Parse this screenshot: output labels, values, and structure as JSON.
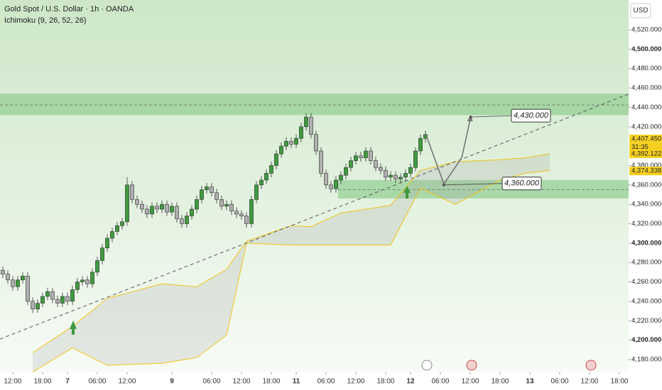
{
  "chart_data": {
    "type": "candlestick",
    "title": "Gold Spot / U.S. Dollar · 1h · OANDA",
    "indicator": "Ichimoku (9, 26, 52, 26)",
    "currency": "USD",
    "up_color": "#3f9a3f",
    "down_color": "#b0b0b0",
    "x": [
      -2,
      -1,
      0,
      1,
      2,
      3,
      4,
      5,
      6,
      7,
      8,
      9,
      10,
      11,
      12,
      13,
      14,
      15,
      16,
      17,
      18,
      19,
      20,
      21,
      22,
      23,
      24,
      25,
      26,
      27,
      28,
      29,
      30,
      31,
      32,
      33,
      34,
      35,
      36,
      37,
      38,
      39,
      40,
      41,
      42,
      43,
      44,
      45,
      46,
      47,
      48,
      49,
      50,
      51,
      52,
      53,
      54,
      55,
      56,
      57,
      58,
      59,
      60,
      61,
      62,
      63,
      64,
      65,
      66,
      67,
      68,
      69,
      70,
      71,
      72,
      73,
      74,
      75,
      76,
      77,
      78,
      79,
      80,
      81,
      82,
      83
    ],
    "open": [
      4272,
      4268,
      4262,
      4255,
      4262,
      4266,
      4240,
      4232,
      4238,
      4245,
      4250,
      4242,
      4238,
      4245,
      4240,
      4252,
      4260,
      4262,
      4258,
      4270,
      4282,
      4295,
      4305,
      4312,
      4318,
      4322,
      4360,
      4345,
      4340,
      4335,
      4330,
      4338,
      4335,
      4340,
      4332,
      4338,
      4325,
      4320,
      4328,
      4335,
      4345,
      4355,
      4358,
      4352,
      4345,
      4338,
      4340,
      4333,
      4330,
      4328,
      4320,
      4345,
      4360,
      4365,
      4372,
      4380,
      4392,
      4400,
      4405,
      4402,
      4408,
      4420,
      4430,
      4412,
      4395,
      4372,
      4360,
      4356,
      4365,
      4370,
      4378,
      4385,
      4390,
      4388,
      4395,
      4385,
      4378,
      4375,
      4368,
      4370,
      4366,
      4368,
      4372,
      4378,
      4395,
      4408
    ],
    "high": [
      4276,
      4272,
      4266,
      4266,
      4270,
      4270,
      4244,
      4242,
      4249,
      4254,
      4254,
      4246,
      4249,
      4249,
      4256,
      4264,
      4266,
      4266,
      4274,
      4286,
      4299,
      4309,
      4316,
      4322,
      4326,
      4368,
      4364,
      4349,
      4344,
      4339,
      4342,
      4342,
      4344,
      4344,
      4342,
      4342,
      4329,
      4332,
      4339,
      4349,
      4359,
      4362,
      4362,
      4356,
      4349,
      4344,
      4344,
      4337,
      4334,
      4332,
      4349,
      4364,
      4369,
      4376,
      4384,
      4396,
      4404,
      4409,
      4409,
      4412,
      4424,
      4434,
      4434,
      4416,
      4399,
      4376,
      4364,
      4369,
      4374,
      4382,
      4389,
      4394,
      4394,
      4399,
      4399,
      4389,
      4382,
      4379,
      4374,
      4374,
      4372,
      4376,
      4382,
      4399,
      4412,
      4416
    ],
    "low": [
      4264,
      4258,
      4251,
      4251,
      4258,
      4236,
      4228,
      4228,
      4234,
      4241,
      4238,
      4234,
      4234,
      4236,
      4236,
      4248,
      4256,
      4254,
      4254,
      4266,
      4278,
      4291,
      4301,
      4308,
      4314,
      4318,
      4341,
      4336,
      4331,
      4326,
      4326,
      4331,
      4331,
      4328,
      4328,
      4321,
      4316,
      4316,
      4324,
      4331,
      4341,
      4351,
      4348,
      4341,
      4334,
      4334,
      4329,
      4326,
      4324,
      4316,
      4316,
      4341,
      4356,
      4361,
      4368,
      4376,
      4388,
      4396,
      4398,
      4398,
      4404,
      4416,
      4408,
      4391,
      4368,
      4356,
      4352,
      4352,
      4361,
      4366,
      4374,
      4381,
      4384,
      4384,
      4381,
      4374,
      4371,
      4364,
      4364,
      4362,
      4362,
      4364,
      4368,
      4374,
      4391,
      4404
    ],
    "close": [
      4268,
      4262,
      4255,
      4262,
      4266,
      4240,
      4232,
      4238,
      4245,
      4250,
      4242,
      4238,
      4245,
      4240,
      4252,
      4260,
      4262,
      4258,
      4270,
      4282,
      4295,
      4305,
      4312,
      4318,
      4322,
      4360,
      4345,
      4340,
      4335,
      4330,
      4338,
      4335,
      4340,
      4332,
      4338,
      4325,
      4320,
      4328,
      4335,
      4345,
      4355,
      4358,
      4352,
      4345,
      4338,
      4340,
      4333,
      4330,
      4328,
      4320,
      4345,
      4360,
      4365,
      4372,
      4380,
      4392,
      4400,
      4405,
      4402,
      4408,
      4420,
      4430,
      4412,
      4395,
      4372,
      4360,
      4356,
      4365,
      4370,
      4378,
      4385,
      4390,
      4388,
      4395,
      4385,
      4378,
      4375,
      4368,
      4370,
      4366,
      4368,
      4372,
      4378,
      4395,
      4408,
      4412
    ],
    "cloud": {
      "x": [
        4,
        12,
        19,
        30,
        37,
        43,
        47,
        56,
        60,
        66,
        76,
        82,
        89,
        98,
        103,
        108
      ],
      "span_a": [
        4187,
        4214,
        4243,
        4258,
        4255,
        4273,
        4302,
        4318,
        4317,
        4331,
        4339,
        4375,
        4384,
        4386,
        4388,
        4392
      ],
      "span_b": [
        4167,
        4192,
        4174,
        4176,
        4182,
        4205,
        4300,
        4298,
        4298,
        4298,
        4298,
        4357,
        4340,
        4365,
        4372,
        4375
      ],
      "color": "#f0c419"
    },
    "zones": [
      {
        "low": 4432,
        "high": 4454,
        "mid": 4442.5
      },
      {
        "low": 4346,
        "high": 4365,
        "mid": 4355,
        "x_start": 65.4
      }
    ],
    "zone_color": "#7cc47c",
    "trendline": {
      "x": [
        -2.6,
        124
      ],
      "y": [
        4201,
        4454
      ]
    },
    "projection": {
      "x": [
        83.1,
        86.7,
        90.3,
        92.1
      ],
      "y": [
        4412,
        4361,
        4388,
        4430
      ]
    },
    "annotations": [
      {
        "value": 4430,
        "label": "4,430.000",
        "x": 92.1
      },
      {
        "value": 4360,
        "label": "4,360.000",
        "x": 86.7
      }
    ],
    "price_labels": [
      {
        "value": 4407.45,
        "label": "4,407.450",
        "color": "#f5d020"
      },
      {
        "value": 4392.122,
        "label": "4,392.122",
        "color": "#f5d020"
      },
      {
        "value": 4374.338,
        "label": "4,374.338",
        "color": "#f5d020"
      }
    ],
    "countdown": "31:35",
    "xlim": [
      -2.57,
      123.86
    ],
    "ylim": [
      4166.8,
      4550.7
    ],
    "yticks": [
      {
        "value": 4180,
        "label": "4,180.000"
      },
      {
        "value": 4200,
        "label": "4,200.000"
      },
      {
        "value": 4220,
        "label": "4,220.000"
      },
      {
        "value": 4240,
        "label": "4,240.000"
      },
      {
        "value": 4260,
        "label": "4,260.000"
      },
      {
        "value": 4280,
        "label": "4,280.000"
      },
      {
        "value": 4300,
        "label": "4,300.000"
      },
      {
        "value": 4320,
        "label": "4,320.000"
      },
      {
        "value": 4340,
        "label": "4,340.000"
      },
      {
        "value": 4360,
        "label": "4,360.000"
      },
      {
        "value": 4380,
        "label": "4,380.000"
      },
      {
        "value": 4420,
        "label": "4,420.000"
      },
      {
        "value": 4440,
        "label": "4,440.000"
      },
      {
        "value": 4460,
        "label": "4,460.000"
      },
      {
        "value": 4480,
        "label": "4,480.000"
      },
      {
        "value": 4500,
        "label": "4,500.000"
      },
      {
        "value": 4520,
        "label": "4,520.000"
      }
    ],
    "xticks": [
      {
        "value": 0,
        "label": "12:00"
      },
      {
        "value": 6,
        "label": "18:00"
      },
      {
        "value": 11,
        "label": "7"
      },
      {
        "value": 17,
        "label": "06:00"
      },
      {
        "value": 23,
        "label": "12:00"
      },
      {
        "value": 32,
        "label": "9"
      },
      {
        "value": 40,
        "label": "06:00"
      },
      {
        "value": 46,
        "label": "12:00"
      },
      {
        "value": 52,
        "label": "18:00"
      },
      {
        "value": 57,
        "label": "11"
      },
      {
        "value": 63,
        "label": "06:00"
      },
      {
        "value": 69,
        "label": "12:00"
      },
      {
        "value": 75,
        "label": "18:00"
      },
      {
        "value": 80,
        "label": "12"
      },
      {
        "value": 86,
        "label": "06:00"
      },
      {
        "value": 92,
        "label": "12:00"
      },
      {
        "value": 98,
        "label": "18:00"
      },
      {
        "value": 104,
        "label": "13"
      },
      {
        "value": 110,
        "label": "06:00"
      },
      {
        "value": 116,
        "label": "12:00"
      },
      {
        "value": 122,
        "label": "18:00"
      }
    ]
  }
}
